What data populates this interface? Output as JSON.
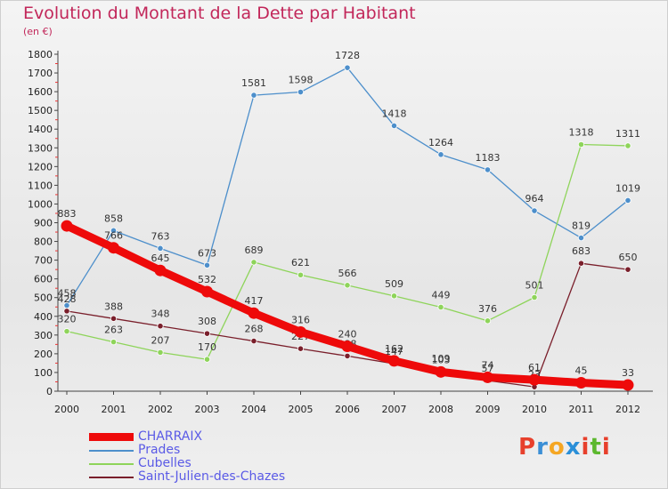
{
  "title": "Evolution du Montant de la Dette par Habitant",
  "subtitle": "(en €)",
  "logo": {
    "text": "Proxiti",
    "letter_colors": [
      "#e7402c",
      "#3b8fd6",
      "#f5a623",
      "#2a8fd8",
      "#e7402c",
      "#5cb82e",
      "#e7402c"
    ]
  },
  "chart_data": {
    "type": "line",
    "title": "Evolution du Montant de la Dette par Habitant",
    "subtitle": "(en €)",
    "x": [
      "2000",
      "2001",
      "2002",
      "2003",
      "2004",
      "2005",
      "2006",
      "2007",
      "2008",
      "2009",
      "2010",
      "2011",
      "2012"
    ],
    "ylim": [
      0,
      1800
    ],
    "yticks": [
      0,
      100,
      200,
      300,
      400,
      500,
      600,
      700,
      800,
      900,
      1000,
      1100,
      1200,
      1300,
      1400,
      1500,
      1600,
      1700,
      1800
    ],
    "grid": false,
    "legend": "bottom-left",
    "series": [
      {
        "name": "Prades",
        "color": "#4d8fcb",
        "values": [
          458,
          858,
          763,
          673,
          1581,
          1598,
          1728,
          1418,
          1264,
          1183,
          964,
          819,
          1019
        ]
      },
      {
        "name": "Cubelles",
        "color": "#8ed45a",
        "values": [
          320,
          263,
          207,
          170,
          689,
          621,
          566,
          509,
          449,
          376,
          501,
          1318,
          1311
        ]
      },
      {
        "name": "Saint-Julien-des-Chazes",
        "color": "#7a1f2b",
        "values": [
          428,
          388,
          348,
          308,
          268,
          227,
          188,
          147,
          109,
          57,
          23,
          683,
          650
        ]
      },
      {
        "name": "CHARRAIX",
        "color": "#ee0a0a",
        "values": [
          883,
          766,
          645,
          532,
          417,
          316,
          240,
          162,
          103,
          74,
          61,
          45,
          33
        ]
      }
    ]
  }
}
